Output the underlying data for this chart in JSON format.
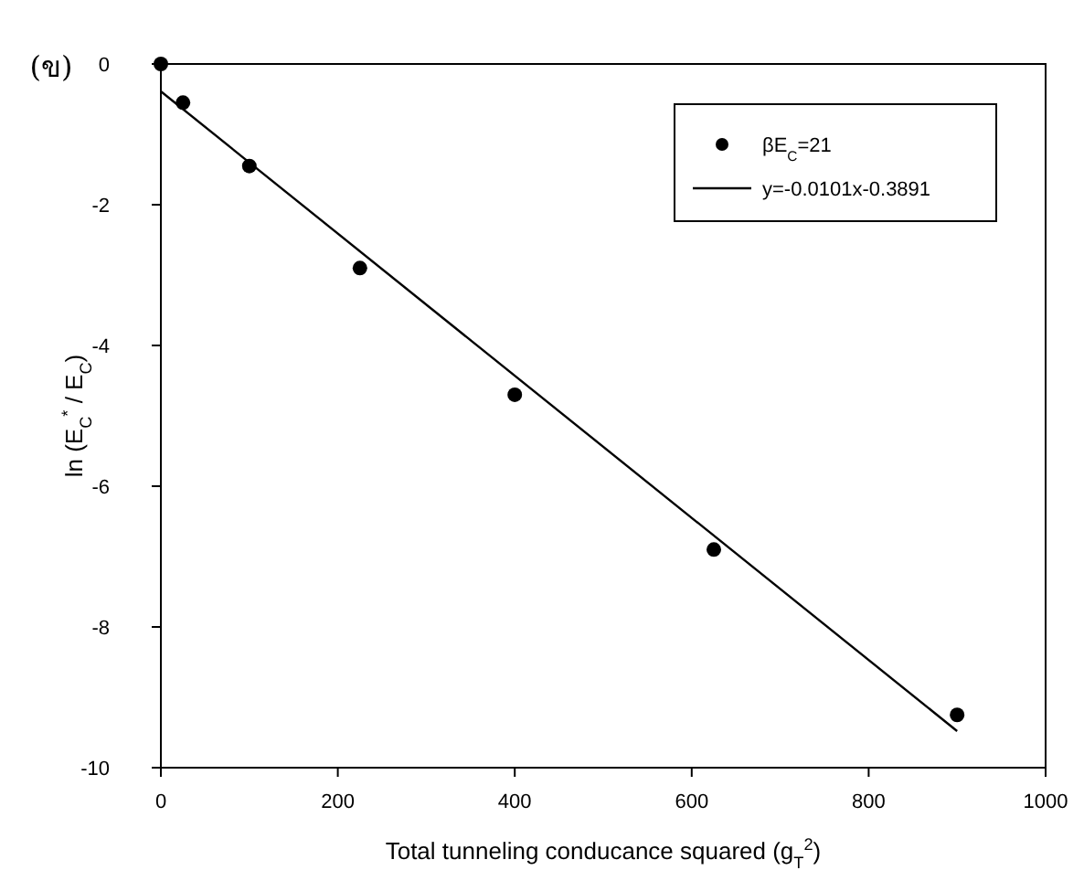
{
  "chart_data": {
    "type": "scatter",
    "title": "(ข)",
    "xlabel": "Total tunneling conducance squared (g$_{T}$$^{2}$)",
    "ylabel": "ln (E$_{C}$$^{*}$ / E$_{C}$)",
    "xlim": [
      0,
      1000
    ],
    "xticks": [
      0,
      200,
      400,
      600,
      800,
      1000
    ],
    "ylim": [
      -10,
      0
    ],
    "yticks": [
      -10,
      -8,
      -6,
      -4,
      -2,
      0
    ],
    "grid": false,
    "legend": "top right",
    "series": [
      {
        "name": "βE$_{C}$=21",
        "marker": "circle",
        "color": "#000000",
        "x": [
          0,
          25,
          100,
          225,
          400,
          625,
          900
        ],
        "values": [
          0,
          -0.55,
          -1.45,
          -2.9,
          -4.7,
          -6.9,
          -9.25
        ]
      },
      {
        "name": "y=-0.0101x-0.3891",
        "type": "line",
        "line_style": "solid",
        "marker": "none",
        "color": "#000000",
        "x": [
          0,
          900
        ],
        "values": [
          -0.39,
          -9.48
        ]
      }
    ]
  }
}
